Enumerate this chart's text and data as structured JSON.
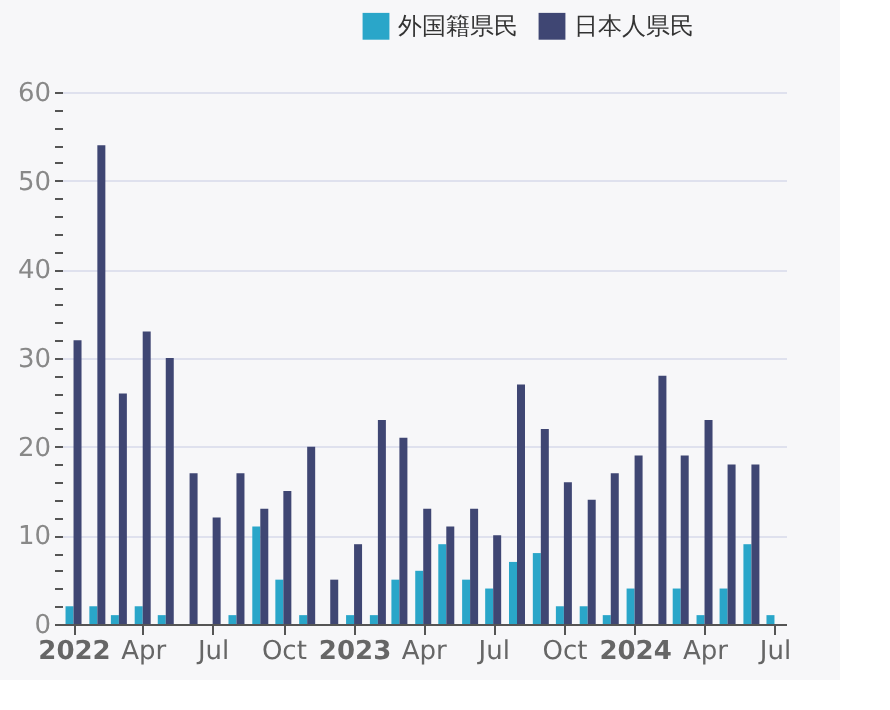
{
  "chart_data": {
    "type": "bar",
    "x": [
      "2022-01",
      "2022-02",
      "2022-03",
      "2022-04",
      "2022-05",
      "2022-06",
      "2022-07",
      "2022-08",
      "2022-09",
      "2022-10",
      "2022-11",
      "2022-12",
      "2023-01",
      "2023-02",
      "2023-03",
      "2023-04",
      "2023-05",
      "2023-06",
      "2023-07",
      "2023-08",
      "2023-09",
      "2023-10",
      "2023-11",
      "2023-12",
      "2024-01",
      "2024-02",
      "2024-03",
      "2024-04",
      "2024-05",
      "2024-06",
      "2024-07"
    ],
    "series": [
      {
        "name": "外国籍県民",
        "color": "#2aa6c9",
        "values": [
          2,
          2,
          1,
          2,
          1,
          0,
          0,
          1,
          11,
          5,
          1,
          0,
          1,
          1,
          5,
          6,
          9,
          5,
          4,
          7,
          8,
          2,
          2,
          1,
          4,
          0,
          4,
          1,
          4,
          9,
          1
        ]
      },
      {
        "name": "日本人県民",
        "color": "#3f4673",
        "values": [
          32,
          54,
          26,
          33,
          30,
          17,
          12,
          17,
          13,
          15,
          20,
          5,
          9,
          23,
          21,
          13,
          11,
          13,
          10,
          27,
          22,
          16,
          14,
          17,
          19,
          28,
          19,
          23,
          18,
          18,
          null
        ]
      }
    ],
    "ylim": [
      0,
      60
    ],
    "yticks": [
      0,
      {
        "value": 2,
        "label": null
      },
      {
        "value": 4,
        "label": null
      },
      {
        "value": 6,
        "label": null
      },
      {
        "value": 8,
        "label": null
      },
      10,
      {
        "value": 12,
        "label": null
      },
      {
        "value": 14,
        "label": null
      },
      {
        "value": 16,
        "label": null
      },
      {
        "value": 18,
        "label": null
      },
      20,
      {
        "value": 22,
        "label": null
      },
      {
        "value": 24,
        "label": null
      },
      {
        "value": 26,
        "label": null
      },
      {
        "value": 28,
        "label": null
      },
      30,
      {
        "value": 32,
        "label": null
      },
      {
        "value": 34,
        "label": null
      },
      {
        "value": 36,
        "label": null
      },
      {
        "value": 38,
        "label": null
      },
      40,
      {
        "value": 42,
        "label": null
      },
      {
        "value": 44,
        "label": null
      },
      {
        "value": 46,
        "label": null
      },
      {
        "value": 48,
        "label": null
      },
      50,
      {
        "value": 52,
        "label": null
      },
      {
        "value": 54,
        "label": null
      },
      {
        "value": 56,
        "label": null
      },
      {
        "value": 58,
        "label": null
      },
      60
    ],
    "xlim": [
      "2021-12-17",
      "2024-07-16"
    ],
    "xticks": [
      {
        "value": "2022-01",
        "label": "2022"
      },
      {
        "value": "2022-04",
        "label": "Apr"
      },
      {
        "value": "2022-07",
        "label": "Jul"
      },
      {
        "value": "2022-10",
        "label": "Oct"
      },
      {
        "value": "2023-01",
        "label": "2023"
      },
      {
        "value": "2023-04",
        "label": "Apr"
      },
      {
        "value": "2023-07",
        "label": "Jul"
      },
      {
        "value": "2023-10",
        "label": "Oct"
      },
      {
        "value": "2024-01",
        "label": "2024"
      },
      {
        "value": "2024-04",
        "label": "Apr"
      },
      {
        "value": "2024-07",
        "label": "Jul"
      }
    ],
    "grid": "y",
    "legend": "top right"
  }
}
